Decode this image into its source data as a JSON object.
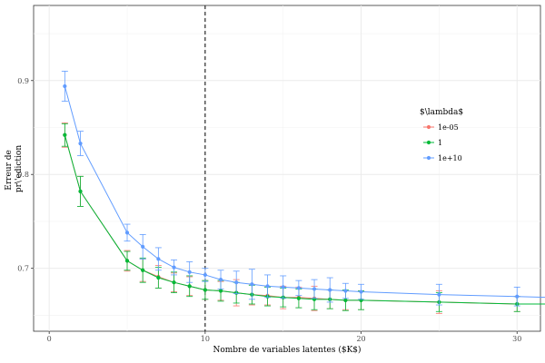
{
  "chart_data": {
    "type": "line",
    "xlabel": "Nombre de variables latentes ($K$)",
    "ylabel": [
      "Erreur de",
      "pr\\'ediction"
    ],
    "xlim": [
      -1,
      31.5
    ],
    "ylim": [
      0.633,
      0.98
    ],
    "x_ticks": [
      0,
      10,
      20,
      30
    ],
    "x_tick_labels": [
      "0",
      "10",
      "20",
      "30"
    ],
    "y_ticks": [
      0.7,
      0.8,
      0.9
    ],
    "y_tick_labels": [
      "0.7",
      "0.8",
      "0.9"
    ],
    "grid": true,
    "vline": {
      "x": 10,
      "style": "dashed",
      "color": "#000000"
    },
    "legend": {
      "title": "$\\lambda$",
      "placement": "right"
    },
    "x": [
      1,
      2,
      5,
      6,
      7,
      8,
      9,
      10,
      11,
      12,
      13,
      14,
      15,
      16,
      17,
      18,
      19,
      20,
      25,
      30,
      32
    ],
    "series": [
      {
        "name": "1e-05",
        "color": "#F8766D",
        "values": [
          0.842,
          0.782,
          0.708,
          0.698,
          0.691,
          0.685,
          0.681,
          0.677,
          0.676,
          0.674,
          0.672,
          0.671,
          0.669,
          0.669,
          0.668,
          0.667,
          0.666,
          0.666,
          0.664,
          0.662,
          0.662
        ],
        "errors": [
          0.013,
          0.016,
          0.011,
          0.012,
          0.012,
          0.01,
          0.01,
          0.01,
          0.01,
          0.014,
          0.011,
          0.01,
          0.012,
          0.011,
          0.013,
          0.01,
          0.01,
          0.01,
          0.012,
          0.008,
          null
        ]
      },
      {
        "name": "1",
        "color": "#00BA38",
        "values": [
          0.842,
          0.782,
          0.708,
          0.698,
          0.69,
          0.685,
          0.681,
          0.677,
          0.676,
          0.674,
          0.672,
          0.67,
          0.669,
          0.668,
          0.667,
          0.667,
          0.666,
          0.666,
          0.664,
          0.662,
          0.662
        ],
        "errors": [
          0.012,
          0.016,
          0.01,
          0.013,
          0.011,
          0.011,
          0.011,
          0.01,
          0.011,
          0.011,
          0.01,
          0.01,
          0.01,
          0.01,
          0.011,
          0.01,
          0.011,
          0.01,
          0.01,
          0.008,
          null
        ]
      },
      {
        "name": "1e+10",
        "color": "#619CFF",
        "values": [
          0.894,
          0.833,
          0.738,
          0.723,
          0.71,
          0.701,
          0.696,
          0.693,
          0.688,
          0.685,
          0.683,
          0.681,
          0.68,
          0.679,
          0.678,
          0.677,
          0.676,
          0.675,
          0.672,
          0.67,
          0.669
        ],
        "errors": [
          0.016,
          0.013,
          0.009,
          0.013,
          0.012,
          0.008,
          0.011,
          0.007,
          0.01,
          0.012,
          0.016,
          0.012,
          0.012,
          0.008,
          0.01,
          0.013,
          0.008,
          0.008,
          0.011,
          0.01,
          null
        ]
      }
    ]
  }
}
